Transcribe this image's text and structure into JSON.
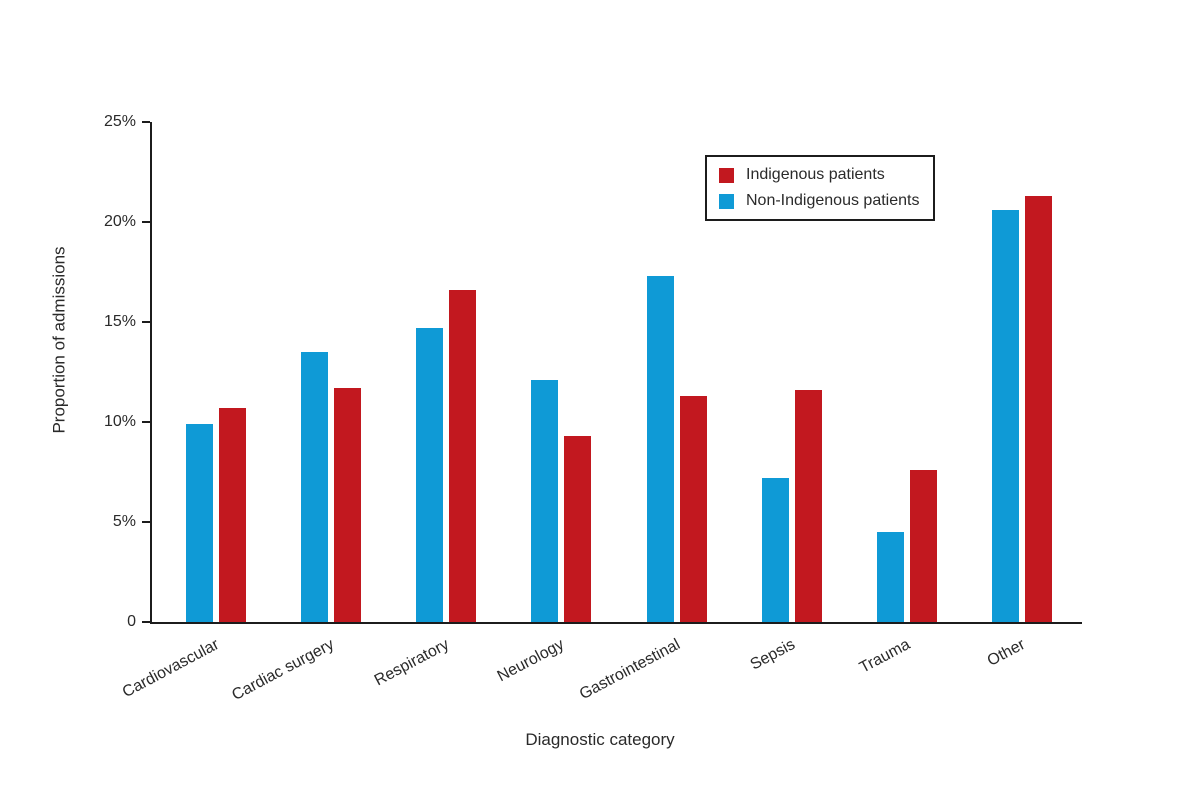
{
  "chart_data": {
    "type": "bar",
    "title": "",
    "xlabel": "Diagnostic category",
    "ylabel": "Proportion of admissions",
    "categories": [
      "Cardiovascular",
      "Cardiac surgery",
      "Respiratory",
      "Neurology",
      "Gastrointestinal",
      "Sepsis",
      "Trauma",
      "Other"
    ],
    "series": [
      {
        "name": "Indigenous patients",
        "color": "#c2181f",
        "values": [
          10.7,
          11.7,
          16.6,
          9.3,
          11.3,
          11.6,
          7.6,
          21.3
        ]
      },
      {
        "name": "Non-Indigenous patients",
        "color": "#0f9ad6",
        "values": [
          9.9,
          13.5,
          14.7,
          12.1,
          17.3,
          7.2,
          4.5,
          20.6
        ]
      }
    ],
    "ylim": [
      0,
      25
    ],
    "yticks": [
      {
        "v": 0,
        "label": "0"
      },
      {
        "v": 5,
        "label": "5%"
      },
      {
        "v": 10,
        "label": "10%"
      },
      {
        "v": 15,
        "label": "15%"
      },
      {
        "v": 20,
        "label": "20%"
      },
      {
        "v": 25,
        "label": "25%"
      }
    ],
    "legend_position": "top-right",
    "grid": "off",
    "bars_left_to_right": [
      1,
      0
    ]
  }
}
